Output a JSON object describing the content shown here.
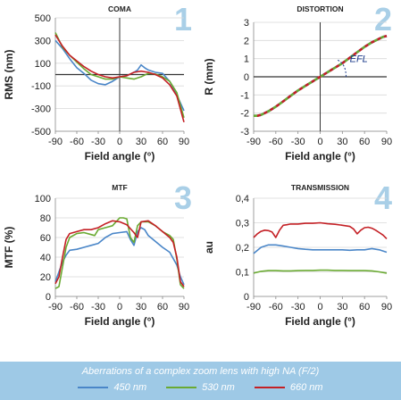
{
  "caption": "Aberrations of a complex zoom lens with high NA (F/2)",
  "legend": [
    {
      "label": "450 nm",
      "color": "#4a86c8"
    },
    {
      "label": "530 nm",
      "color": "#6aaa32"
    },
    {
      "label": "660 nm",
      "color": "#c42025"
    }
  ],
  "chart_data": [
    {
      "type": "line",
      "panel": "1",
      "title": "COMA",
      "xlabel": "Field angle (°)",
      "ylabel": "RMS (nm)",
      "xlim": [
        -90,
        90
      ],
      "ylim": [
        -500,
        500
      ],
      "xticks": [
        "-90",
        "-60",
        "-30",
        "0",
        "30",
        "60",
        "90"
      ],
      "yticks": [
        "500",
        "300",
        "100",
        "-100",
        "-300",
        "-500"
      ],
      "zero_line": true,
      "series": [
        {
          "name": "450 nm",
          "color": "#4a86c8",
          "x": [
            -90,
            -80,
            -70,
            -60,
            -50,
            -40,
            -30,
            -20,
            -10,
            0,
            10,
            20,
            25,
            30,
            35,
            40,
            50,
            60,
            70,
            80,
            90
          ],
          "y": [
            300,
            230,
            140,
            60,
            10,
            -50,
            -80,
            -90,
            -60,
            -20,
            -10,
            20,
            40,
            85,
            60,
            40,
            20,
            10,
            -60,
            -180,
            -320
          ]
        },
        {
          "name": "530 nm",
          "color": "#6aaa32",
          "x": [
            -90,
            -80,
            -70,
            -60,
            -50,
            -40,
            -30,
            -20,
            -10,
            0,
            10,
            20,
            30,
            40,
            50,
            60,
            70,
            80,
            90
          ],
          "y": [
            370,
            240,
            170,
            110,
            50,
            0,
            -20,
            -40,
            -40,
            -20,
            -30,
            -40,
            -20,
            10,
            5,
            -20,
            -60,
            -160,
            -380
          ]
        },
        {
          "name": "660 nm",
          "color": "#c42025",
          "x": [
            -90,
            -80,
            -70,
            -60,
            -50,
            -40,
            -30,
            -20,
            -10,
            0,
            10,
            20,
            30,
            40,
            50,
            60,
            70,
            80,
            90
          ],
          "y": [
            350,
            250,
            170,
            120,
            70,
            30,
            0,
            -20,
            -30,
            -20,
            -10,
            20,
            30,
            20,
            0,
            -30,
            -90,
            -190,
            -420
          ]
        }
      ]
    },
    {
      "type": "line",
      "panel": "2",
      "title": "DISTORTION",
      "xlabel": "Field angle (°)",
      "ylabel": "R (mm)",
      "xlim": [
        -90,
        90
      ],
      "ylim": [
        -3,
        3
      ],
      "xticks": [
        "-90",
        "-60",
        "-30",
        "0",
        "30",
        "60",
        "90"
      ],
      "yticks": [
        "3",
        "2",
        "1",
        "0",
        "-1",
        "-2",
        "-3"
      ],
      "zero_line": true,
      "annotation": "EFL",
      "series": [
        {
          "name": "450 nm",
          "color": "#4a86c8",
          "x": [
            -90,
            -85,
            -80,
            -70,
            -60,
            -50,
            -40,
            -30,
            -20,
            -10,
            0,
            10,
            20,
            30,
            40,
            50,
            60,
            70,
            80,
            85,
            90
          ],
          "y": [
            -2.15,
            -2.15,
            -2.1,
            -1.9,
            -1.65,
            -1.35,
            -1.05,
            -0.75,
            -0.5,
            -0.25,
            0,
            0.25,
            0.5,
            0.75,
            1.05,
            1.35,
            1.65,
            1.9,
            2.1,
            2.2,
            2.25
          ]
        },
        {
          "name": "530 nm",
          "color": "#6aaa32",
          "x": [
            -90,
            -85,
            -80,
            -70,
            -60,
            -50,
            -40,
            -30,
            -20,
            -10,
            0,
            10,
            20,
            30,
            40,
            50,
            60,
            70,
            80,
            85,
            90
          ],
          "y": [
            -2.15,
            -2.15,
            -2.1,
            -1.9,
            -1.65,
            -1.35,
            -1.05,
            -0.75,
            -0.5,
            -0.25,
            0,
            0.25,
            0.5,
            0.75,
            1.05,
            1.35,
            1.65,
            1.9,
            2.1,
            2.2,
            2.25
          ]
        },
        {
          "name": "660 nm",
          "color": "#c42025",
          "x": [
            -90,
            -85,
            -80,
            -70,
            -60,
            -50,
            -40,
            -30,
            -20,
            -10,
            0,
            10,
            20,
            30,
            40,
            50,
            60,
            70,
            80,
            85,
            90
          ],
          "y": [
            -2.15,
            -2.15,
            -2.1,
            -1.9,
            -1.65,
            -1.35,
            -1.05,
            -0.75,
            -0.5,
            -0.25,
            0,
            0.25,
            0.5,
            0.75,
            1.05,
            1.35,
            1.65,
            1.9,
            2.1,
            2.2,
            2.25
          ]
        }
      ]
    },
    {
      "type": "line",
      "panel": "3",
      "title": "MTF",
      "xlabel": "Field angle (°)",
      "ylabel": "MTF (%)",
      "xlim": [
        -90,
        90
      ],
      "ylim": [
        0,
        100
      ],
      "xticks": [
        "-90",
        "-60",
        "-30",
        "0",
        "30",
        "60",
        "90"
      ],
      "yticks": [
        "100",
        "80",
        "60",
        "40",
        "20",
        "0"
      ],
      "series": [
        {
          "name": "450 nm",
          "color": "#4a86c8",
          "x": [
            -90,
            -85,
            -80,
            -75,
            -70,
            -60,
            -50,
            -40,
            -30,
            -20,
            -10,
            0,
            10,
            15,
            20,
            25,
            30,
            35,
            40,
            50,
            60,
            70,
            80,
            85,
            90
          ],
          "y": [
            15,
            25,
            35,
            42,
            47,
            48,
            50,
            52,
            54,
            60,
            64,
            65,
            66,
            58,
            52,
            66,
            70,
            68,
            62,
            56,
            50,
            45,
            32,
            20,
            12
          ]
        },
        {
          "name": "530 nm",
          "color": "#6aaa32",
          "x": [
            -90,
            -85,
            -80,
            -75,
            -70,
            -60,
            -50,
            -40,
            -35,
            -30,
            -20,
            -10,
            0,
            5,
            10,
            15,
            20,
            25,
            30,
            40,
            50,
            60,
            70,
            75,
            80,
            85,
            90
          ],
          "y": [
            8,
            10,
            30,
            50,
            60,
            64,
            65,
            63,
            62,
            68,
            70,
            72,
            80,
            80,
            79,
            60,
            55,
            72,
            76,
            76,
            72,
            66,
            62,
            58,
            38,
            12,
            8
          ]
        },
        {
          "name": "660 nm",
          "color": "#c42025",
          "x": [
            -90,
            -85,
            -80,
            -75,
            -70,
            -60,
            -50,
            -40,
            -30,
            -20,
            -10,
            0,
            10,
            20,
            25,
            30,
            40,
            50,
            60,
            70,
            75,
            80,
            85,
            90
          ],
          "y": [
            13,
            20,
            40,
            58,
            64,
            66,
            68,
            68,
            70,
            74,
            77,
            76,
            73,
            65,
            60,
            76,
            77,
            72,
            66,
            60,
            55,
            40,
            15,
            10
          ]
        }
      ]
    },
    {
      "type": "line",
      "panel": "4",
      "title": "TRANSMISSION",
      "xlabel": "Field angle (°)",
      "ylabel": "au",
      "xlim": [
        -90,
        90
      ],
      "ylim": [
        0,
        0.4
      ],
      "xticks": [
        "-90",
        "-60",
        "-30",
        "0",
        "30",
        "60",
        "90"
      ],
      "yticks": [
        "0,4",
        "0,3",
        "0,2",
        "0,1",
        "0"
      ],
      "series": [
        {
          "name": "450 nm",
          "color": "#4a86c8",
          "x": [
            -90,
            -80,
            -70,
            -60,
            -50,
            -40,
            -30,
            -20,
            -10,
            0,
            10,
            20,
            30,
            40,
            50,
            60,
            70,
            80,
            90
          ],
          "y": [
            0.175,
            0.2,
            0.21,
            0.21,
            0.205,
            0.2,
            0.195,
            0.192,
            0.19,
            0.19,
            0.19,
            0.19,
            0.19,
            0.188,
            0.19,
            0.19,
            0.195,
            0.19,
            0.18
          ]
        },
        {
          "name": "530 nm",
          "color": "#6aaa32",
          "x": [
            -90,
            -80,
            -70,
            -60,
            -50,
            -40,
            -30,
            -20,
            -10,
            0,
            10,
            20,
            30,
            40,
            50,
            60,
            70,
            80,
            90
          ],
          "y": [
            0.095,
            0.102,
            0.105,
            0.105,
            0.104,
            0.104,
            0.105,
            0.106,
            0.106,
            0.107,
            0.107,
            0.106,
            0.106,
            0.105,
            0.105,
            0.105,
            0.104,
            0.1,
            0.095
          ]
        },
        {
          "name": "660 nm",
          "color": "#c42025",
          "x": [
            -90,
            -85,
            -80,
            -75,
            -70,
            -65,
            -60,
            -55,
            -50,
            -45,
            -40,
            -30,
            -20,
            -10,
            0,
            10,
            20,
            30,
            40,
            45,
            50,
            55,
            60,
            65,
            70,
            75,
            80,
            85,
            90
          ],
          "y": [
            0.24,
            0.255,
            0.265,
            0.27,
            0.268,
            0.262,
            0.24,
            0.27,
            0.29,
            0.292,
            0.295,
            0.295,
            0.298,
            0.298,
            0.3,
            0.296,
            0.294,
            0.29,
            0.285,
            0.275,
            0.255,
            0.27,
            0.28,
            0.282,
            0.278,
            0.27,
            0.26,
            0.25,
            0.235
          ]
        }
      ]
    }
  ]
}
